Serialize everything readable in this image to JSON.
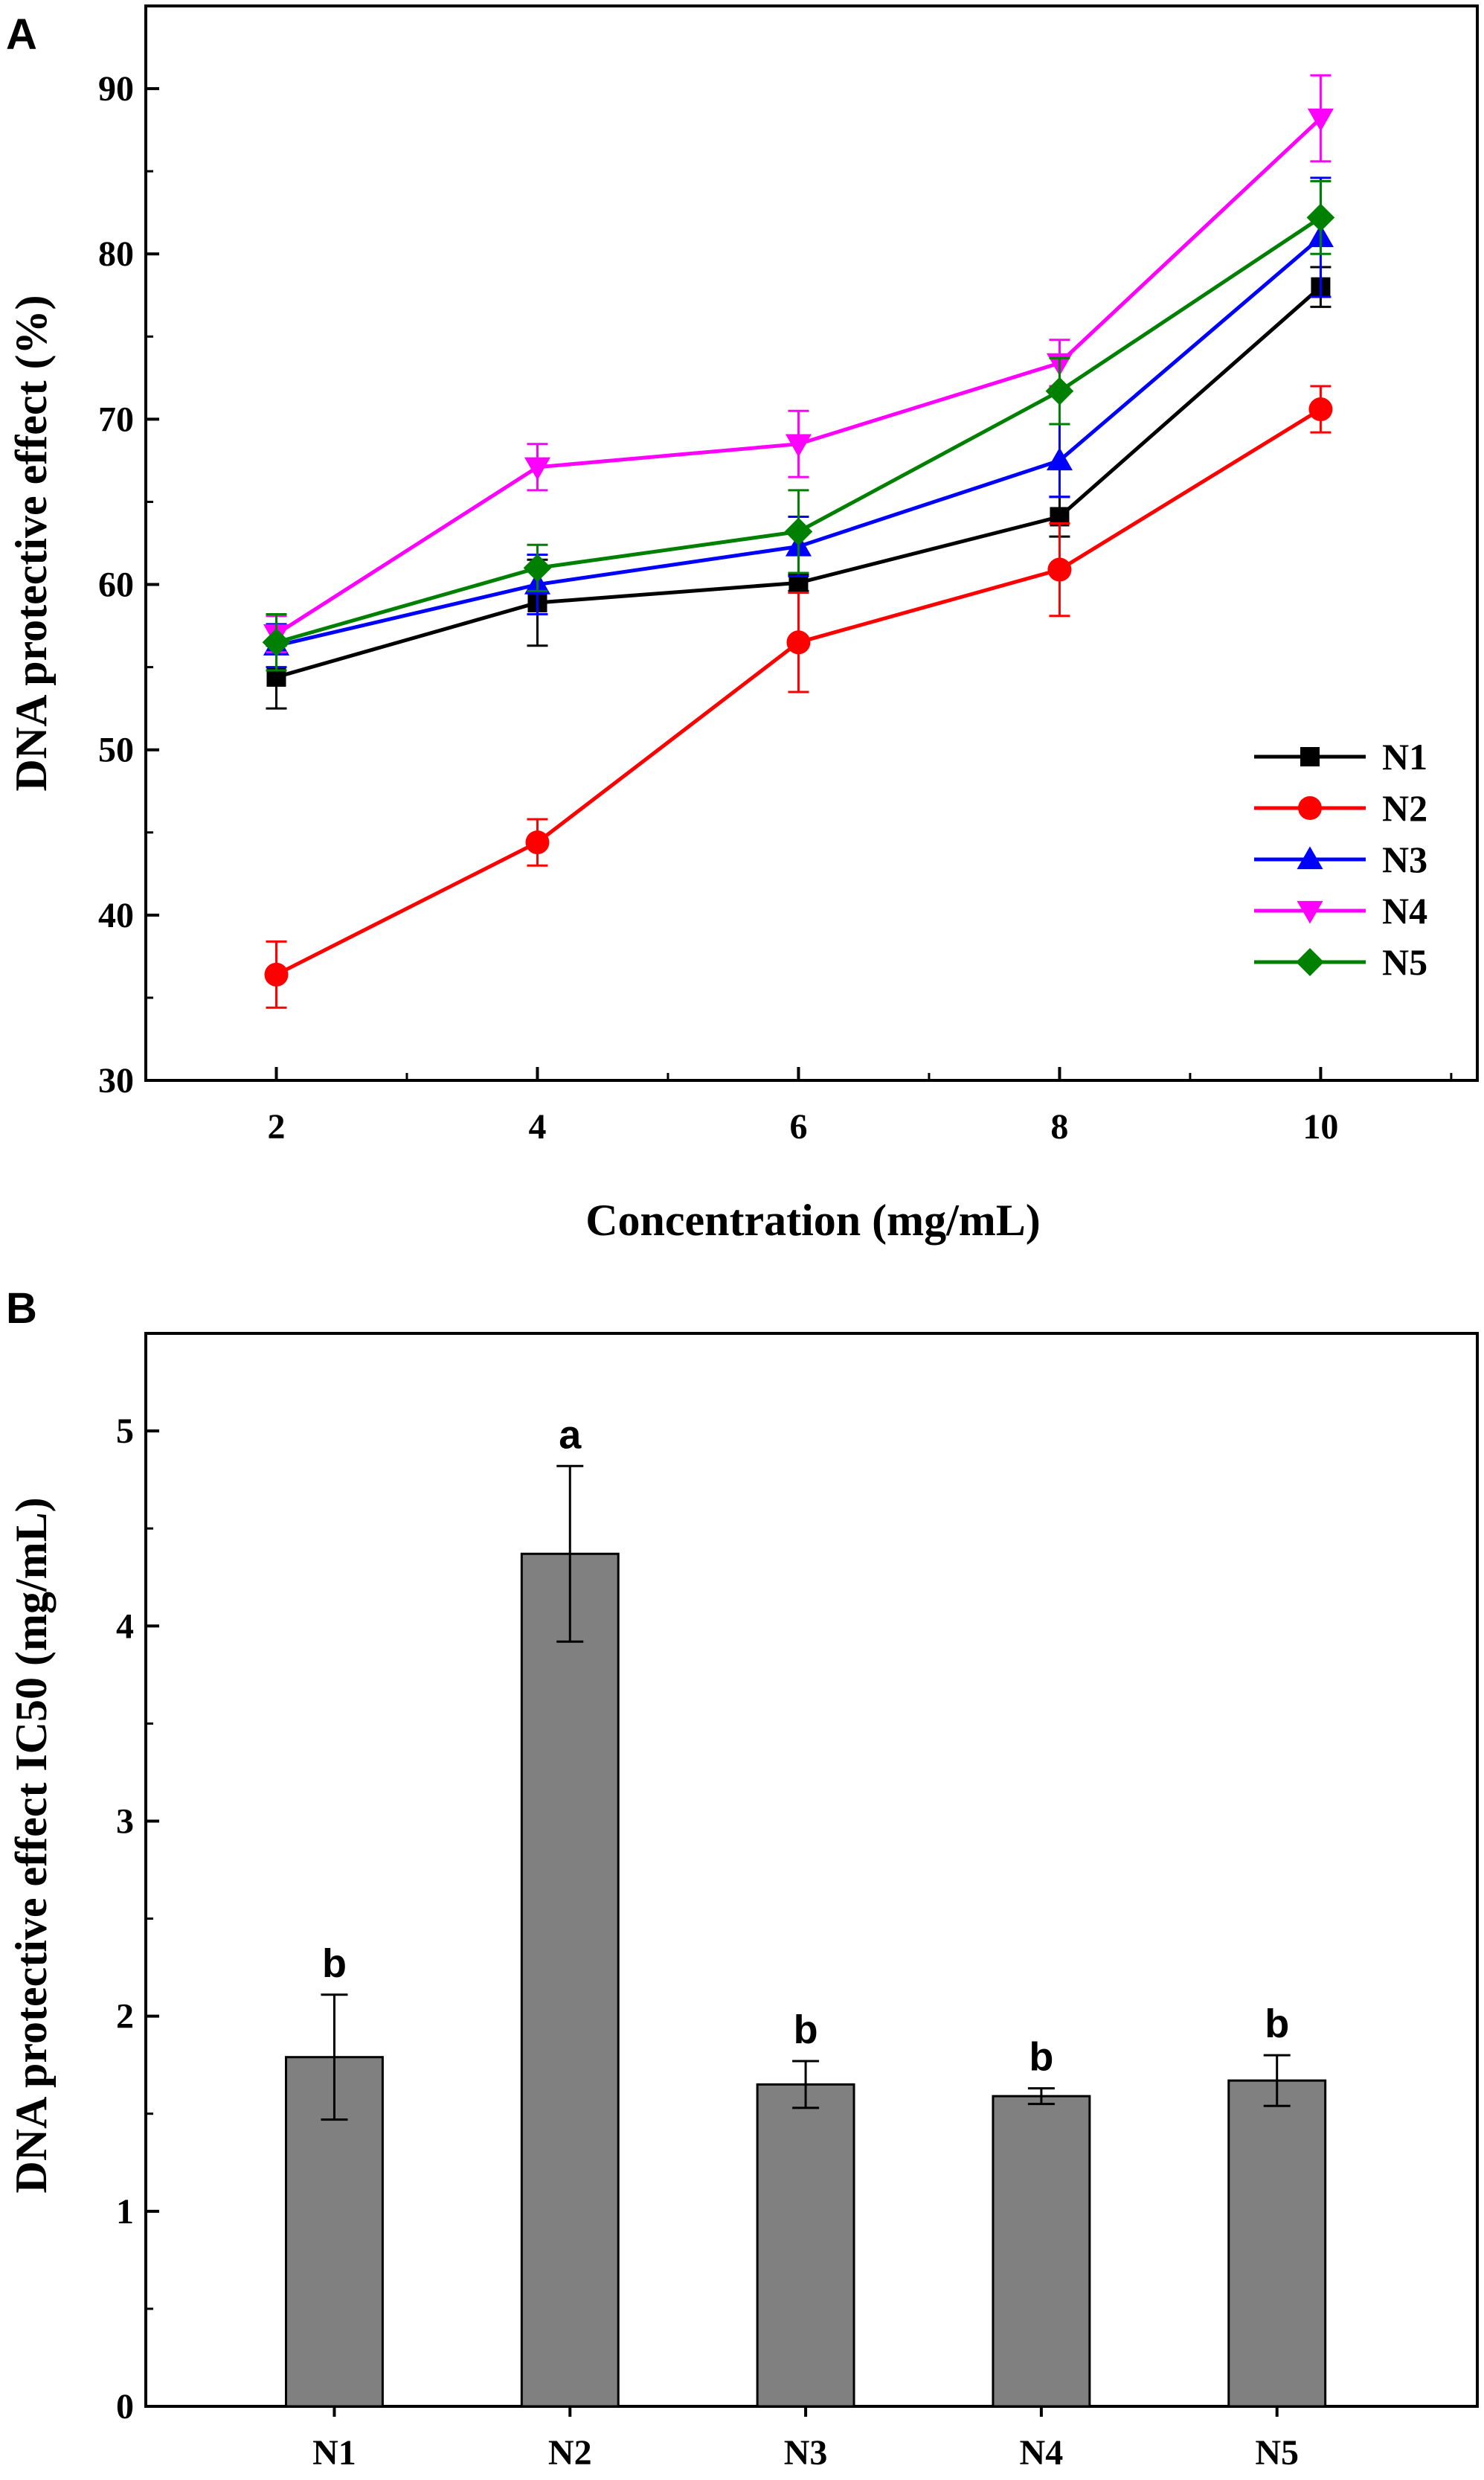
{
  "chart_data": [
    {
      "panel": "A",
      "type": "line",
      "title": "",
      "xlabel": "Concentration (mg/mL)",
      "ylabel": "DNA protective effect (%)",
      "x": [
        2,
        4,
        6,
        8,
        10
      ],
      "x_ticks": [
        "2",
        "4",
        "6",
        "8",
        "10"
      ],
      "xlim": [
        1,
        11.2
      ],
      "ylim": [
        30,
        95
      ],
      "y_ticks": [
        "30",
        "40",
        "50",
        "60",
        "70",
        "80",
        "90"
      ],
      "y_tick_values": [
        30,
        40,
        50,
        60,
        70,
        80,
        90
      ],
      "grid": false,
      "legend_position": "bottom-right",
      "series": [
        {
          "name": "N1",
          "color": "#000000",
          "marker": "square",
          "values": [
            54.4,
            58.9,
            60.1,
            64.1,
            78.0
          ],
          "errors": [
            1.9,
            2.6,
            0.5,
            1.2,
            1.2
          ]
        },
        {
          "name": "N2",
          "color": "#ff0000",
          "marker": "circle",
          "values": [
            36.4,
            44.4,
            56.5,
            60.9,
            70.6
          ],
          "errors": [
            2.0,
            1.4,
            3.0,
            2.8,
            1.4
          ]
        },
        {
          "name": "N3",
          "color": "#0000ff",
          "marker": "triangle-up",
          "values": [
            56.3,
            60.0,
            62.3,
            67.5,
            81.0
          ],
          "errors": [
            1.3,
            1.8,
            1.8,
            2.2,
            3.6
          ]
        },
        {
          "name": "N4",
          "color": "#ff00ff",
          "marker": "triangle-down",
          "values": [
            57.0,
            67.1,
            68.5,
            73.4,
            88.2
          ],
          "errors": [
            1.1,
            1.4,
            2.0,
            1.4,
            2.6
          ]
        },
        {
          "name": "N5",
          "color": "#008000",
          "marker": "diamond",
          "values": [
            56.5,
            61.0,
            63.2,
            71.7,
            82.2
          ],
          "errors": [
            1.7,
            1.4,
            2.5,
            2.0,
            2.2
          ]
        }
      ]
    },
    {
      "panel": "B",
      "type": "bar",
      "title": "",
      "xlabel": "",
      "ylabel": "DNA protective effect IC50 (mg/mL)",
      "categories": [
        "N1",
        "N2",
        "N3",
        "N4",
        "N5"
      ],
      "values": [
        1.79,
        4.37,
        1.65,
        1.59,
        1.67
      ],
      "errors": [
        0.32,
        0.45,
        0.12,
        0.04,
        0.13
      ],
      "significance_labels": [
        "b",
        "a",
        "b",
        "b",
        "b"
      ],
      "bar_color": "#808080",
      "ylim": [
        0,
        5.5
      ],
      "y_ticks": [
        "0",
        "1",
        "2",
        "3",
        "4",
        "5"
      ],
      "y_tick_values": [
        0,
        1,
        2,
        3,
        4,
        5
      ],
      "grid": false
    }
  ]
}
